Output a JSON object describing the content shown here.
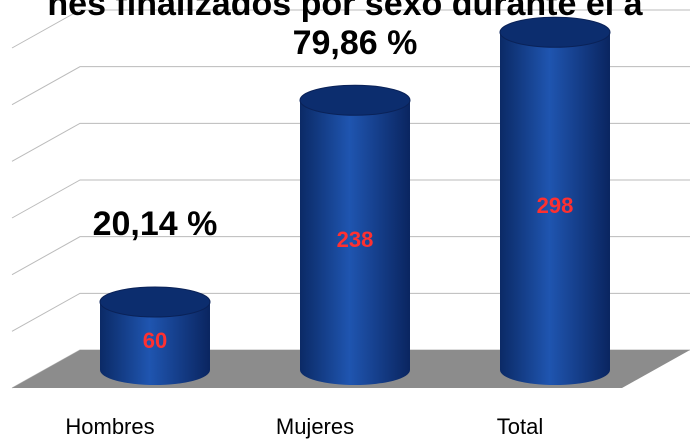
{
  "chart_data": {
    "type": "bar",
    "title": "nes finalizados por sexo durante el a",
    "categories": [
      "Hombres",
      "Mujeres",
      "Total"
    ],
    "values": [
      60,
      238,
      298
    ],
    "color": "#123f91",
    "annotations": [
      "20,14 %",
      "79,86 %"
    ],
    "ylim": [
      0,
      300
    ],
    "yticks": [
      0,
      50,
      100,
      150,
      200,
      250,
      300
    ],
    "grid": true
  }
}
